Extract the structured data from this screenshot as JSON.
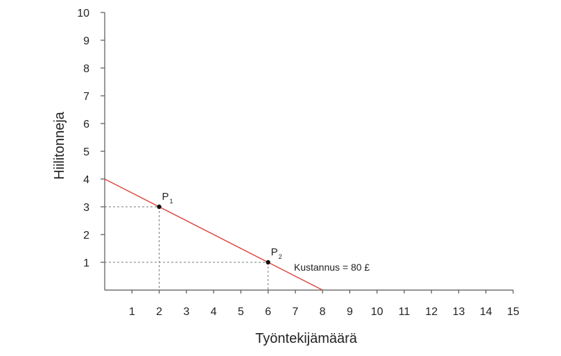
{
  "chart_data": {
    "type": "line",
    "title": "",
    "xlabel": "Työntekijämäärä",
    "ylabel": "Hiilitonneja",
    "xlim": [
      0,
      15
    ],
    "ylim": [
      0,
      10
    ],
    "x_ticks": [
      1,
      2,
      3,
      4,
      5,
      6,
      7,
      8,
      9,
      10,
      11,
      12,
      13,
      14,
      15
    ],
    "y_ticks": [
      1,
      2,
      3,
      4,
      5,
      6,
      7,
      8,
      9,
      10
    ],
    "grid": false,
    "series": [
      {
        "name": "Kustannus = 80 £",
        "color": "#d9443a",
        "x": [
          0,
          8
        ],
        "y": [
          4,
          0
        ]
      }
    ],
    "points": [
      {
        "label": "P",
        "subscript": "1",
        "x": 2,
        "y": 3
      },
      {
        "label": "P",
        "subscript": "2",
        "x": 6,
        "y": 1
      }
    ],
    "annotations": [
      {
        "text": "Kustannus = 80 £"
      }
    ]
  },
  "colors": {
    "line": "#d9443a",
    "axis": "#555555",
    "guide": "#777777",
    "point": "#111111"
  }
}
